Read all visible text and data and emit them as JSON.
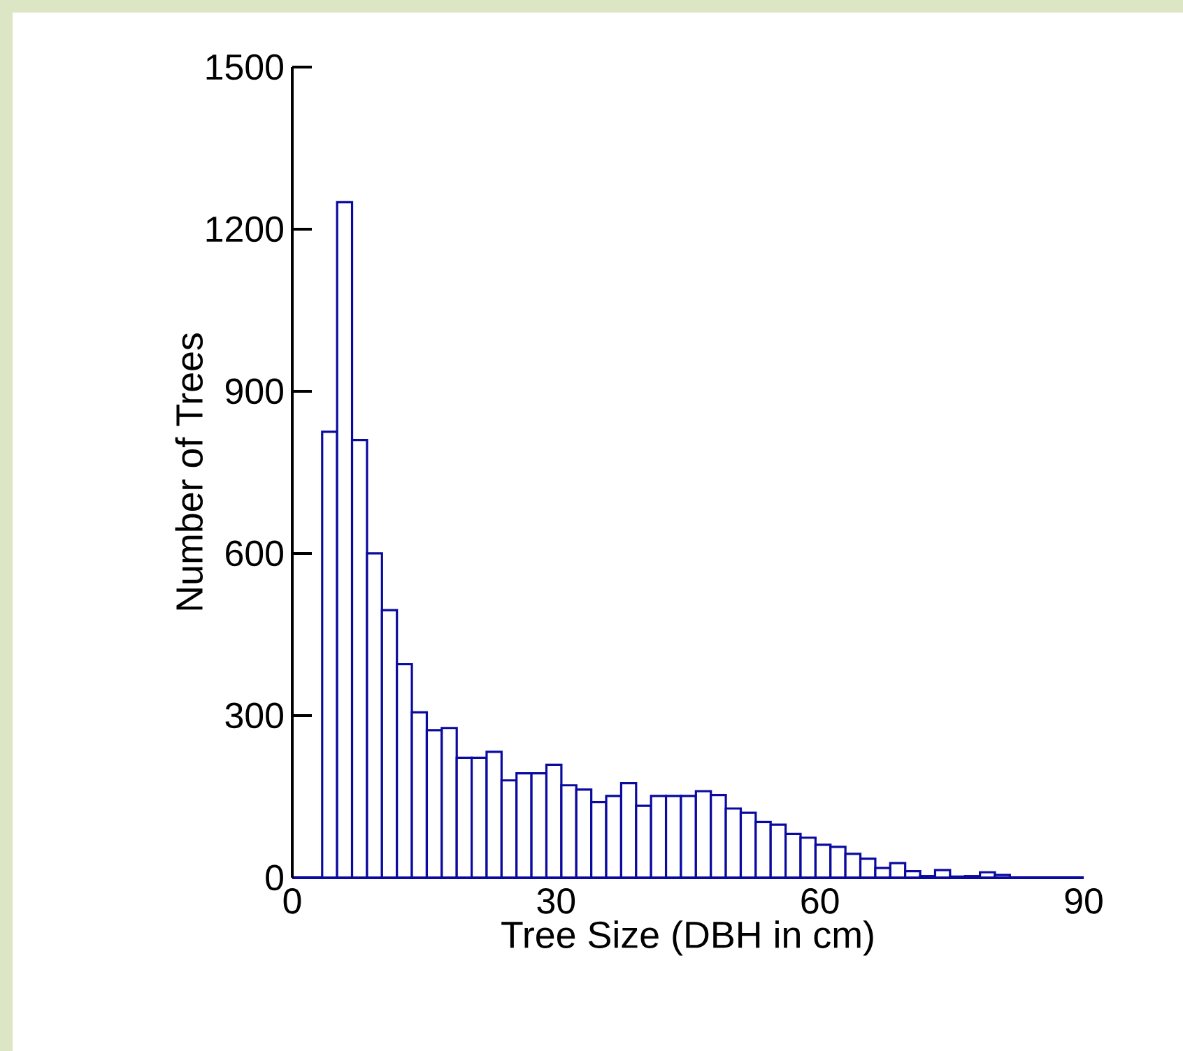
{
  "chart_data": {
    "type": "histogram",
    "xlabel": "Tree Size (DBH in cm)",
    "ylabel": "Number of Trees",
    "bins": [
      3.4,
      5.1,
      6.8,
      8.5,
      10.2,
      11.9,
      13.6,
      15.3,
      17.0,
      18.7,
      20.4,
      22.1,
      23.8,
      25.5,
      27.2,
      28.9,
      30.6,
      32.3,
      34.0,
      35.7,
      37.4,
      39.1,
      40.8,
      42.5,
      44.2,
      45.9,
      47.6,
      49.3,
      51.0,
      52.7,
      54.4,
      56.1,
      57.8,
      59.5,
      61.2,
      62.9,
      64.6,
      66.3,
      68.0,
      69.7,
      71.4,
      73.1,
      74.8,
      76.5,
      78.2,
      79.9,
      81.6
    ],
    "values": [
      825,
      1250,
      810,
      600,
      495,
      395,
      306,
      273,
      277,
      222,
      222,
      233,
      180,
      193,
      193,
      209,
      171,
      163,
      140,
      151,
      175,
      133,
      151,
      151,
      151,
      160,
      153,
      128,
      120,
      103,
      98,
      81,
      74,
      61,
      57,
      44,
      35,
      18,
      27,
      12,
      3,
      14,
      2,
      3,
      10,
      5
    ],
    "color": "#0a0aa0",
    "xlim": [
      0,
      90
    ],
    "ylim": [
      0,
      1500
    ],
    "xticks": [
      0,
      30,
      60,
      90
    ],
    "yticks": [
      0,
      300,
      600,
      900,
      1200,
      1500
    ],
    "grid": false
  }
}
